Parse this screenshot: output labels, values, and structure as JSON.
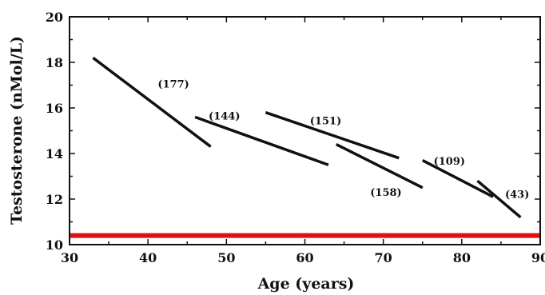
{
  "chart_data": {
    "type": "line",
    "title": "",
    "xlabel": "Age (years)",
    "ylabel": "Testosterone (nMol/L)",
    "xlim": [
      30,
      90
    ],
    "ylim": [
      10,
      20
    ],
    "xticks": [
      "30",
      "40",
      "50",
      "60",
      "70",
      "80",
      "90"
    ],
    "yticks": [
      "10",
      "12",
      "14",
      "16",
      "18",
      "20"
    ],
    "grid": false,
    "legend": "none",
    "reference_line": {
      "y": 10.4,
      "color": "#e01010"
    },
    "series": [
      {
        "label": "(177)",
        "x": [
          33,
          48
        ],
        "y": [
          18.2,
          14.3
        ]
      },
      {
        "label": "(144)",
        "x": [
          46,
          63
        ],
        "y": [
          15.6,
          13.5
        ]
      },
      {
        "label": "(151)",
        "x": [
          55,
          72
        ],
        "y": [
          15.8,
          13.8
        ]
      },
      {
        "label": "(158)",
        "x": [
          64,
          75
        ],
        "y": [
          14.4,
          12.5
        ]
      },
      {
        "label": "(109)",
        "x": [
          75,
          84
        ],
        "y": [
          13.7,
          12.1
        ]
      },
      {
        "label": "(43)",
        "x": [
          82,
          87.5
        ],
        "y": [
          12.8,
          11.2
        ]
      }
    ],
    "colors": {
      "lines": "#111111",
      "axes": "#111111"
    }
  }
}
